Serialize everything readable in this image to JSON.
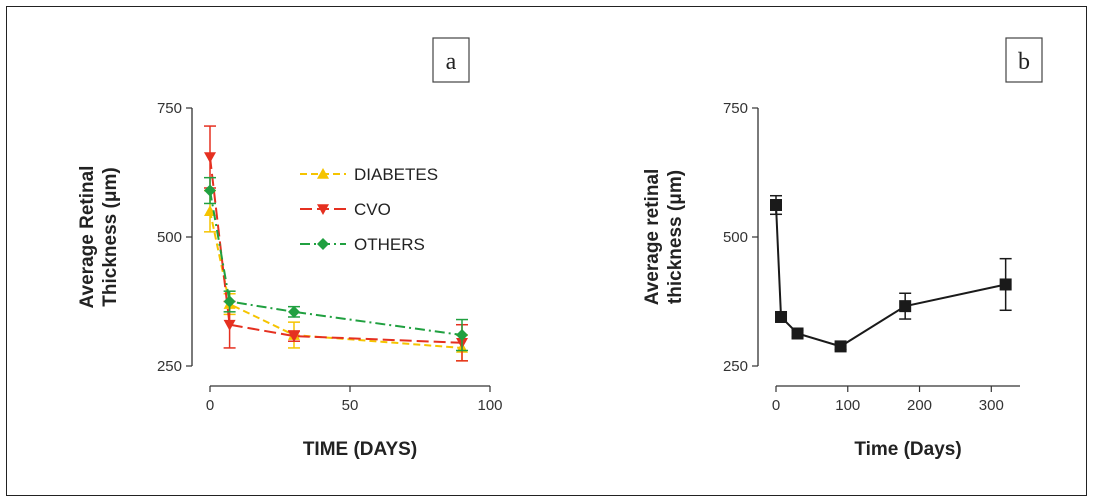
{
  "chart_data": [
    {
      "type": "line",
      "panel_label": "a",
      "xlabel": "TIME (DAYS)",
      "ylabel": "Average Retinal Thickness (μm)",
      "xlim": [
        0,
        100
      ],
      "ylim": [
        250,
        750
      ],
      "xticks": [
        0,
        50,
        100
      ],
      "yticks": [
        250,
        500,
        750
      ],
      "legend_position": "upper-middle",
      "series": [
        {
          "name": "DIABETES",
          "color": "#f5c400",
          "marker": "triangle-up",
          "dash": "dash",
          "x": [
            0,
            7,
            30,
            90
          ],
          "y": [
            550,
            370,
            310,
            285
          ],
          "err": [
            40,
            20,
            25,
            25
          ]
        },
        {
          "name": "CVO",
          "color": "#e53020",
          "marker": "triangle-down",
          "dash": "longdash",
          "x": [
            0,
            7,
            30,
            90
          ],
          "y": [
            655,
            330,
            308,
            295
          ],
          "err": [
            60,
            45,
            10,
            35
          ]
        },
        {
          "name": "OTHERS",
          "color": "#20a040",
          "marker": "diamond",
          "dash": "dashdot",
          "x": [
            0,
            7,
            30,
            90
          ],
          "y": [
            590,
            375,
            355,
            310
          ],
          "err": [
            25,
            20,
            10,
            30
          ]
        }
      ]
    },
    {
      "type": "line",
      "panel_label": "b",
      "xlabel": "Time (Days)",
      "ylabel": "Average retinal thickness (μm)",
      "xlim": [
        0,
        340
      ],
      "ylim": [
        250,
        750
      ],
      "xticks": [
        0,
        100,
        200,
        300
      ],
      "yticks": [
        250,
        500,
        750
      ],
      "series": [
        {
          "color": "#1a1a1a",
          "marker": "square",
          "x": [
            0,
            7,
            30,
            90,
            180,
            320
          ],
          "y": [
            562,
            345,
            313,
            288,
            366,
            408
          ],
          "err": [
            18,
            8,
            6,
            6,
            25,
            50
          ]
        }
      ]
    }
  ]
}
